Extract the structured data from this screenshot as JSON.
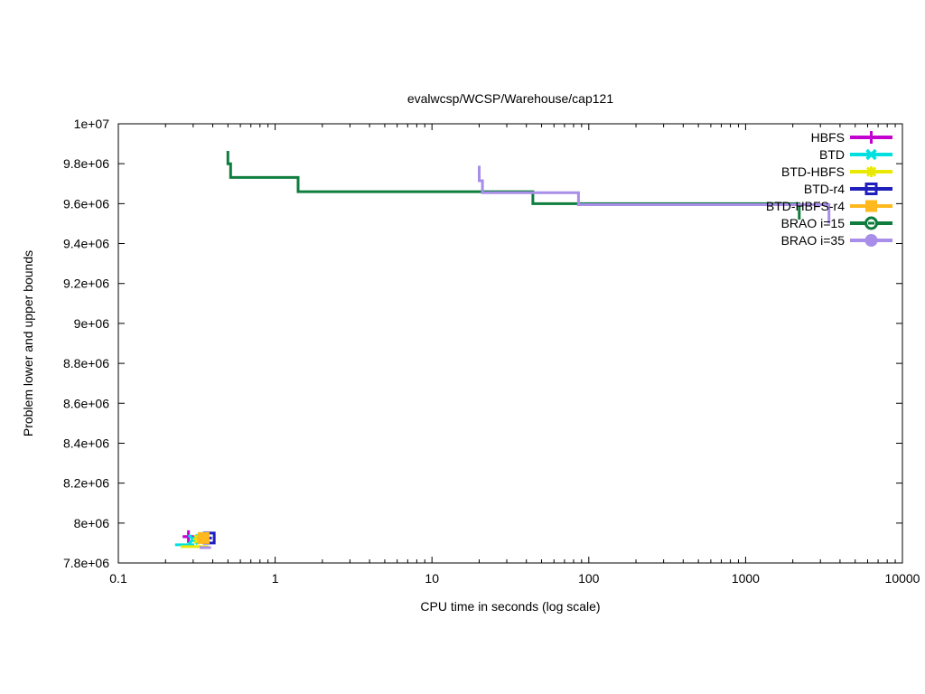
{
  "window": {
    "background": "#ffffff",
    "foreground": "#000000"
  },
  "chart_data": {
    "type": "line",
    "title": "evalwcsp/WCSP/Warehouse/cap121",
    "xlabel": "CPU time in seconds (log scale)",
    "ylabel": "Problem lower and upper bounds",
    "x_scale": "log",
    "xlim": [
      0.1,
      10000
    ],
    "ylim": [
      7800000,
      10000000
    ],
    "grid": false,
    "legend_position": "top-right-inside",
    "x_ticks": [
      {
        "value": 0.1,
        "label": "0.1"
      },
      {
        "value": 1,
        "label": "1"
      },
      {
        "value": 10,
        "label": "10"
      },
      {
        "value": 100,
        "label": "100"
      },
      {
        "value": 1000,
        "label": "1000"
      },
      {
        "value": 10000,
        "label": "10000"
      }
    ],
    "y_ticks": [
      {
        "value": 7800000,
        "label": "7.8e+06"
      },
      {
        "value": 8000000,
        "label": "8e+06"
      },
      {
        "value": 8200000,
        "label": "8.2e+06"
      },
      {
        "value": 8400000,
        "label": "8.4e+06"
      },
      {
        "value": 8600000,
        "label": "8.6e+06"
      },
      {
        "value": 8800000,
        "label": "8.8e+06"
      },
      {
        "value": 9000000,
        "label": "9e+06"
      },
      {
        "value": 9200000,
        "label": "9.2e+06"
      },
      {
        "value": 9400000,
        "label": "9.4e+06"
      },
      {
        "value": 9600000,
        "label": "9.6e+06"
      },
      {
        "value": 9800000,
        "label": "9.8e+06"
      },
      {
        "value": 10000000,
        "label": "1e+07"
      }
    ],
    "series": [
      {
        "name": "HBFS",
        "color": "#c402cf",
        "marker": "plus",
        "segments": [
          [
            [
              0.26,
              7932000
            ],
            [
              0.3,
              7932000
            ]
          ]
        ],
        "markers": [
          [
            0.28,
            7932000
          ]
        ]
      },
      {
        "name": "BTD",
        "color": "#00e0e0",
        "marker": "cross",
        "segments": [
          [
            [
              0.23,
              7891000
            ],
            [
              0.305,
              7891000
            ]
          ]
        ],
        "markers": [
          [
            0.3,
            7918000
          ]
        ]
      },
      {
        "name": "BTD-HBFS",
        "color": "#e8e800",
        "marker": "star",
        "segments": [
          [
            [
              0.25,
              7882000
            ],
            [
              0.375,
              7882000
            ]
          ]
        ],
        "markers": [
          [
            0.325,
            7920000
          ]
        ]
      },
      {
        "name": "BTD-r4",
        "color": "#1f1fbe",
        "marker": "open-square",
        "segments": [
          [
            [
              0.365,
              7925000
            ],
            [
              0.395,
              7925000
            ]
          ]
        ],
        "markers": [
          [
            0.38,
            7925000
          ]
        ]
      },
      {
        "name": "BTD-HBFS-r4",
        "color": "#ffb81e",
        "marker": "filled-square",
        "segments": [
          [
            [
              0.315,
              7925000
            ],
            [
              0.36,
              7925000
            ]
          ]
        ],
        "markers": [
          [
            0.35,
            7925000
          ]
        ]
      },
      {
        "name": "BRAO i=15",
        "color": "#0e7d3e",
        "marker": "circled-dash",
        "segments": [
          [
            [
              0.5,
              9864000
            ],
            [
              0.5,
              9800000
            ],
            [
              0.52,
              9800000
            ],
            [
              0.52,
              9731000
            ],
            [
              1.4,
              9731000
            ],
            [
              1.4,
              9660000
            ],
            [
              44,
              9660000
            ],
            [
              44,
              9600000
            ],
            [
              2200,
              9600000
            ],
            [
              2200,
              9520000
            ]
          ]
        ],
        "markers": []
      },
      {
        "name": "BRAO i=35",
        "color": "#a88ee8",
        "marker": "filled-circle",
        "segments": [
          [
            [
              20,
              9790000
            ],
            [
              20,
              9715000
            ],
            [
              21,
              9715000
            ],
            [
              21,
              9655000
            ],
            [
              86,
              9655000
            ],
            [
              86,
              9595000
            ],
            [
              3400,
              9595000
            ],
            [
              3400,
              9500000
            ]
          ],
          [
            [
              0.33,
              7877000
            ],
            [
              0.39,
              7877000
            ]
          ]
        ],
        "markers": []
      }
    ]
  }
}
